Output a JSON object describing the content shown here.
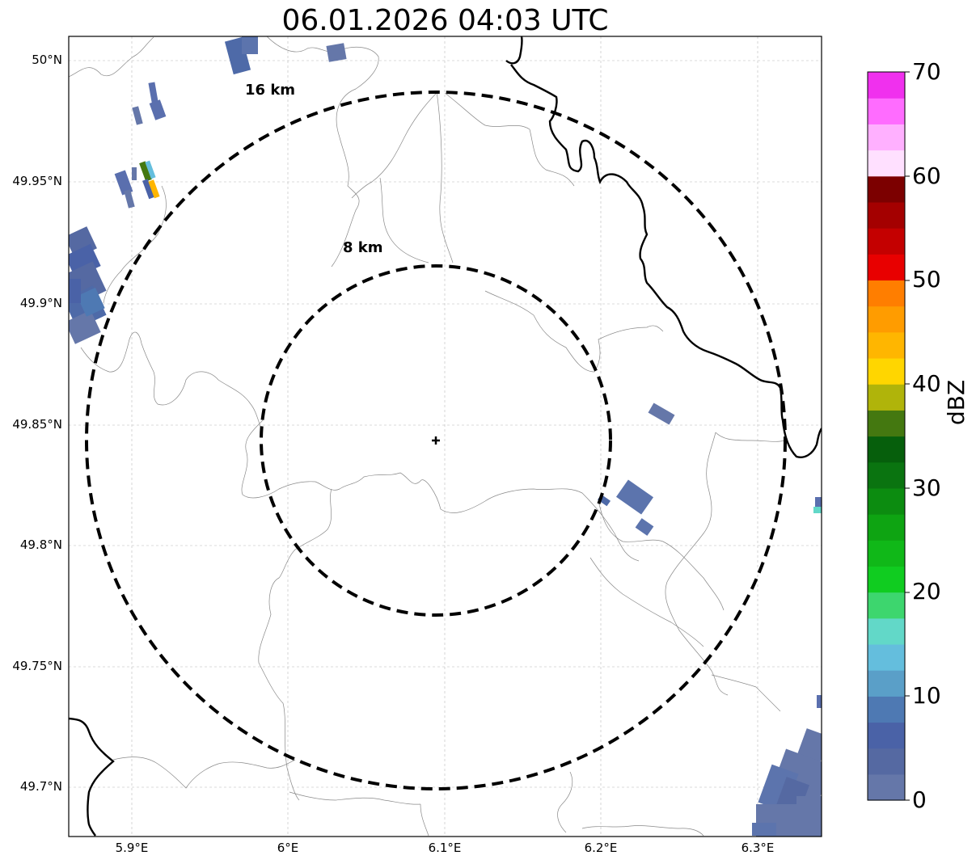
{
  "title": "06.01.2026 04:03 UTC",
  "map": {
    "lat_ticks": [
      "50°N",
      "49.95°N",
      "49.9°N",
      "49.85°N",
      "49.8°N",
      "49.75°N",
      "49.7°N"
    ],
    "lon_ticks": [
      "5.9°E",
      "6°E",
      "6.1°E",
      "6.2°E",
      "6.3°E"
    ],
    "lat_range": [
      49.68,
      50.01
    ],
    "lon_range": [
      5.86,
      6.34
    ],
    "gridlines": true,
    "radar_site": {
      "lon": 6.095,
      "lat": 49.844
    },
    "range_rings": [
      {
        "label": "8 km",
        "radius_km": 8
      },
      {
        "label": "16 km",
        "radius_km": 16
      }
    ]
  },
  "colorbar": {
    "label": "dBZ",
    "ticks": [
      "70",
      "60",
      "50",
      "40",
      "30",
      "20",
      "10",
      "0"
    ],
    "range": [
      0,
      70
    ],
    "colors": [
      "#6577a9",
      "#5569a2",
      "#4a62a7",
      "#4e79b3",
      "#5a9fc8",
      "#64bedd",
      "#62d8c8",
      "#3dd66e",
      "#10cc20",
      "#10b818",
      "#0ea412",
      "#0c8c10",
      "#0a7410",
      "#065f0c",
      "#447810",
      "#b0b40a",
      "#ffd600",
      "#ffb600",
      "#ff9c00",
      "#ff7e00",
      "#e80000",
      "#c40000",
      "#a40000",
      "#7c0000",
      "#ffe0ff",
      "#ffb0ff",
      "#ff6cff",
      "#f030ee"
    ]
  }
}
